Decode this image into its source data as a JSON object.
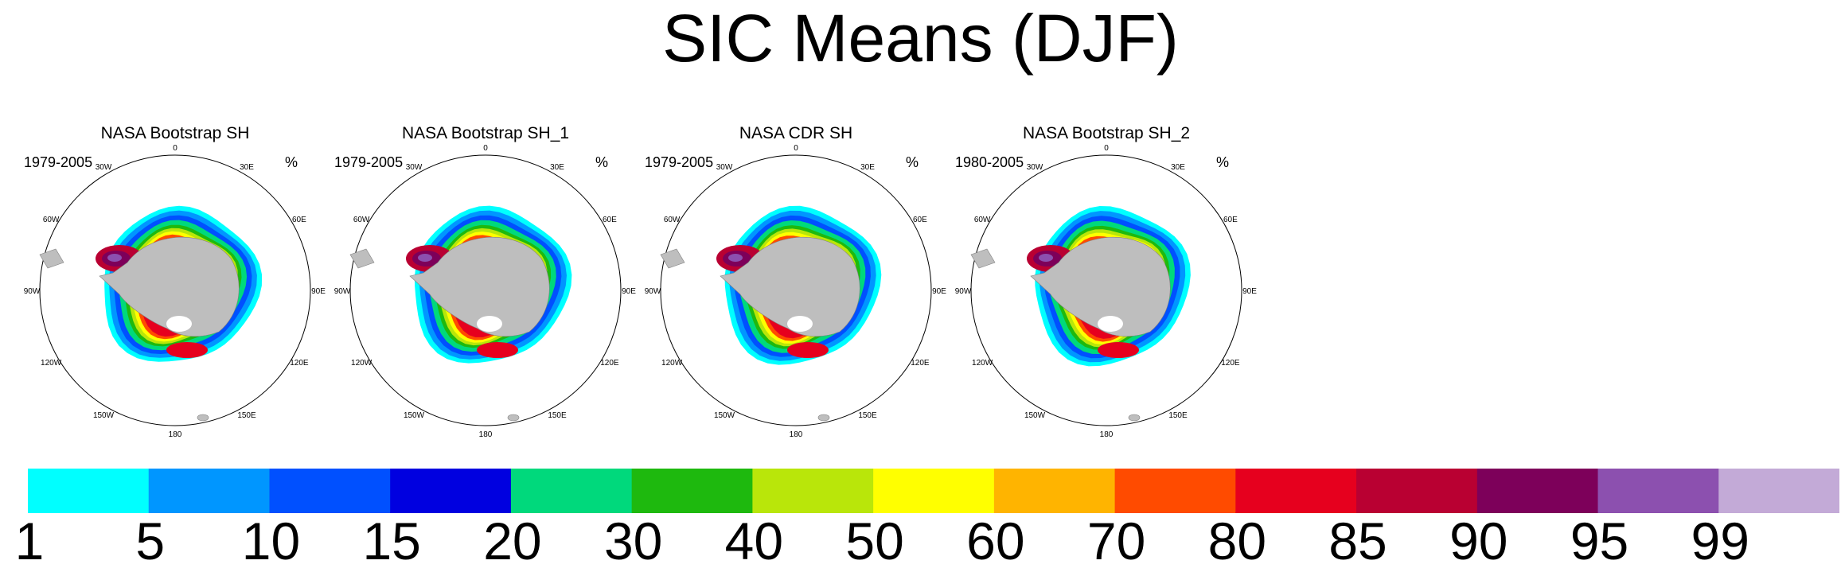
{
  "title": "SIC Means (DJF)",
  "panels": [
    {
      "title": "NASA Bootstrap SH",
      "period": "1979-2005",
      "units": "%"
    },
    {
      "title": "NASA Bootstrap SH_1",
      "period": "1979-2005",
      "units": "%"
    },
    {
      "title": "NASA CDR SH",
      "period": "1979-2005",
      "units": "%"
    },
    {
      "title": "NASA Bootstrap SH_2",
      "period": "1980-2005",
      "units": "%"
    }
  ],
  "map_labels": [
    "0",
    "30E",
    "60E",
    "90E",
    "120E",
    "150E",
    "180",
    "150W",
    "120W",
    "90W",
    "60W",
    "30W"
  ],
  "colorbar": {
    "levels": [
      "1",
      "5",
      "10",
      "15",
      "20",
      "30",
      "40",
      "50",
      "60",
      "70",
      "80",
      "85",
      "90",
      "95",
      "99"
    ],
    "colors": [
      "#00ffff",
      "#0096ff",
      "#0050ff",
      "#0000e0",
      "#00d97c",
      "#1eb90e",
      "#b9e60a",
      "#ffff00",
      "#ffb400",
      "#ff4b00",
      "#e6001e",
      "#b90032",
      "#7d005a",
      "#8c50af",
      "#c3aad7"
    ]
  },
  "chart_data": {
    "type": "heatmap",
    "title": "SIC Means (DJF)",
    "projection": "south polar stereographic",
    "panels": [
      "NASA Bootstrap SH",
      "NASA Bootstrap SH_1",
      "NASA CDR SH",
      "NASA Bootstrap SH_2"
    ],
    "periods": [
      "1979-2005",
      "1979-2005",
      "1979-2005",
      "1980-2005"
    ],
    "units": "%",
    "colorbar_levels": [
      1,
      5,
      10,
      15,
      20,
      30,
      40,
      50,
      60,
      70,
      80,
      85,
      90,
      95,
      99
    ]
  }
}
